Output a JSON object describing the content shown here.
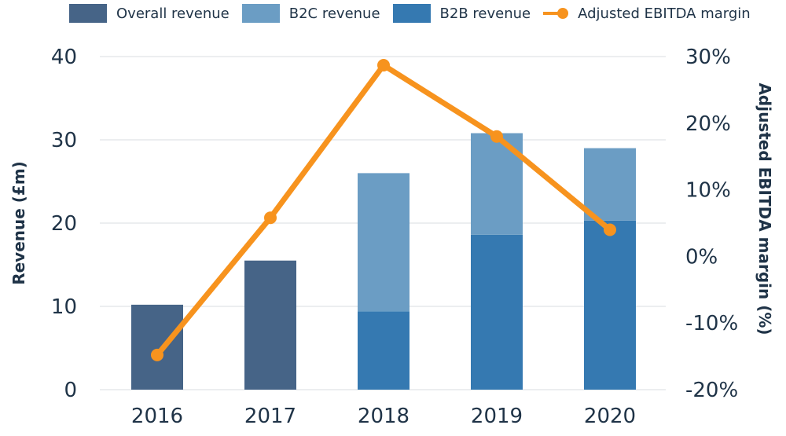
{
  "chart_data": {
    "type": "bar",
    "title": "",
    "categories": [
      "2016",
      "2017",
      "2018",
      "2019",
      "2020"
    ],
    "series": [
      {
        "name": "Overall revenue",
        "kind": "bar",
        "axis": "left",
        "color": "#466487",
        "values": [
          10.2,
          15.5,
          null,
          null,
          null
        ]
      },
      {
        "name": "B2C revenue",
        "kind": "stacked-bar",
        "axis": "left",
        "color": "#6b9dc4",
        "values": [
          null,
          null,
          16.6,
          12.2,
          8.7
        ]
      },
      {
        "name": "B2B revenue",
        "kind": "stacked-bar",
        "axis": "left",
        "color": "#3579b1",
        "values": [
          null,
          null,
          9.4,
          18.6,
          20.3
        ]
      },
      {
        "name": "Adjusted EBITDA margin",
        "kind": "line",
        "axis": "right",
        "color": "#f7931e",
        "unit": "%",
        "values": [
          -14.8,
          5.8,
          28.7,
          18.0,
          4.0
        ]
      }
    ],
    "xlabel": "",
    "ylabel": "Revenue (£m)",
    "y2label": "Adjusted EBITDA margin (%)",
    "ylim": [
      0,
      40
    ],
    "y2lim": [
      -20,
      30
    ],
    "yticks": [
      "0",
      "10",
      "20",
      "30",
      "40"
    ],
    "y2ticks": [
      "-20%",
      "-10%",
      "0%",
      "10%",
      "20%",
      "30%"
    ],
    "grid": true,
    "legend_position": "top"
  },
  "legend": [
    {
      "label": "Overall revenue",
      "color": "#466487",
      "kind": "box"
    },
    {
      "label": "B2C revenue",
      "color": "#6b9dc4",
      "kind": "box"
    },
    {
      "label": "B2B revenue",
      "color": "#3579b1",
      "kind": "box"
    },
    {
      "label": "Adjusted EBITDA margin",
      "color": "#f7931e",
      "kind": "line"
    }
  ]
}
